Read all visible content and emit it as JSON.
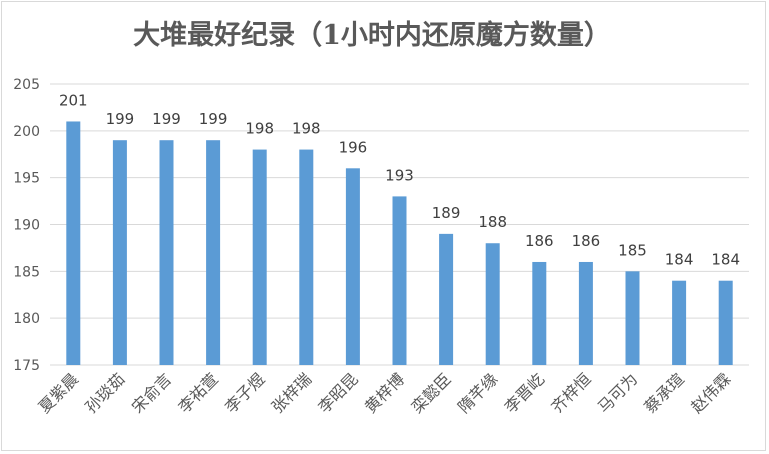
{
  "chart_data": {
    "type": "bar",
    "title": "大堆最好纪录（1小时内还原魔方数量）",
    "categories": [
      "夏紫晨",
      "孙琰茹",
      "宋俞言",
      "李祐萱",
      "李子煜",
      "张梓瑞",
      "李昭昆",
      "黄梓博",
      "栾懿臣",
      "隋芊缘",
      "李晋屹",
      "齐梓恒",
      "马可为",
      "蔡承瑄",
      "赵伟霖"
    ],
    "values": [
      201,
      199,
      199,
      199,
      198,
      198,
      196,
      193,
      189,
      188,
      186,
      186,
      185,
      184,
      184
    ],
    "ylim": [
      175,
      205
    ],
    "yticks": [
      175,
      180,
      185,
      190,
      195,
      200,
      205
    ],
    "grid": true,
    "legend": "none",
    "colors": {
      "bar": "#5b9bd5",
      "grid": "#d9d9d9",
      "axis_text": "#595959",
      "label_text": "#404040",
      "title_text": "#595959"
    }
  }
}
